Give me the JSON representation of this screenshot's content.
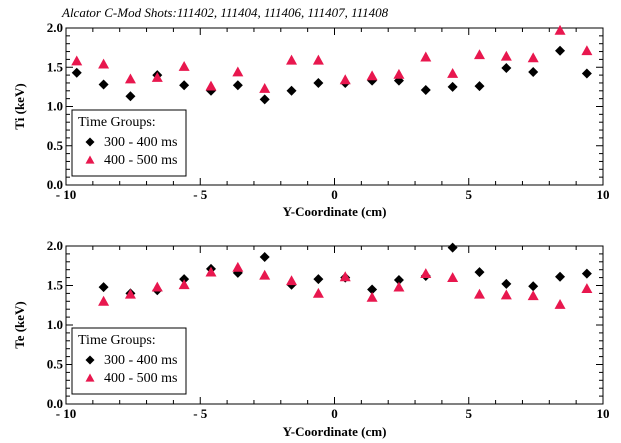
{
  "title": "Alcator C-Mod Shots:111402, 111404, 111406, 111407, 111408",
  "colors": {
    "series1": "#000000",
    "series2": "#e8174e"
  },
  "chart_data": [
    {
      "type": "scatter",
      "xlabel": "Y-Coordinate (cm)",
      "ylabel": "Ti (keV)",
      "xlim": [
        -10,
        10
      ],
      "ylim": [
        0.0,
        2.0
      ],
      "xticks": [
        -10,
        -5,
        0,
        5,
        10
      ],
      "xtick_labels": [
        "- 10",
        "- 5",
        "0",
        "5",
        "10"
      ],
      "yticks": [
        0.0,
        0.5,
        1.0,
        1.5,
        2.0
      ],
      "ytick_labels": [
        "0.0",
        "0.5",
        "1.0",
        "1.5",
        "2.0"
      ],
      "legend_title": "Time Groups:",
      "legend_position": "lower-left",
      "series": [
        {
          "name": "300 - 400 ms",
          "marker": "diamond",
          "x": [
            -9.6,
            -8.6,
            -7.6,
            -6.6,
            -5.6,
            -4.6,
            -3.6,
            -2.6,
            -1.6,
            -0.6,
            0.4,
            1.4,
            2.4,
            3.4,
            4.4,
            5.4,
            6.4,
            7.4,
            8.4,
            9.4
          ],
          "values": [
            1.43,
            1.28,
            1.13,
            1.4,
            1.27,
            1.2,
            1.27,
            1.09,
            1.2,
            1.3,
            1.3,
            1.33,
            1.33,
            1.21,
            1.25,
            1.26,
            1.49,
            1.44,
            1.71,
            1.42
          ]
        },
        {
          "name": "400 - 500 ms",
          "marker": "triangle",
          "x": [
            -9.6,
            -8.6,
            -7.6,
            -6.6,
            -5.6,
            -4.6,
            -3.6,
            -2.6,
            -1.6,
            -0.6,
            0.4,
            1.4,
            2.4,
            3.4,
            4.4,
            5.4,
            6.4,
            7.4,
            8.4,
            9.4
          ],
          "values": [
            1.58,
            1.54,
            1.35,
            1.37,
            1.51,
            1.26,
            1.44,
            1.23,
            1.59,
            1.59,
            1.34,
            1.39,
            1.41,
            1.63,
            1.42,
            1.66,
            1.64,
            1.62,
            1.97,
            1.71
          ]
        }
      ]
    },
    {
      "type": "scatter",
      "xlabel": "Y-Coordinate (cm)",
      "ylabel": "Te (keV)",
      "xlim": [
        -10,
        10
      ],
      "ylim": [
        0.0,
        2.0
      ],
      "xticks": [
        -10,
        -5,
        0,
        5,
        10
      ],
      "xtick_labels": [
        "- 10",
        "- 5",
        "0",
        "5",
        "10"
      ],
      "yticks": [
        0.0,
        0.5,
        1.0,
        1.5,
        2.0
      ],
      "ytick_labels": [
        "0.0",
        "0.5",
        "1.0",
        "1.5",
        "2.0"
      ],
      "legend_title": "Time Groups:",
      "legend_position": "lower-left",
      "series": [
        {
          "name": "300 - 400 ms",
          "marker": "diamond",
          "x": [
            -8.6,
            -7.6,
            -6.6,
            -5.6,
            -4.6,
            -3.6,
            -2.6,
            -1.6,
            -0.6,
            0.4,
            1.4,
            2.4,
            3.4,
            4.4,
            5.4,
            6.4,
            7.4,
            8.4,
            9.4
          ],
          "values": [
            1.48,
            1.4,
            1.44,
            1.58,
            1.71,
            1.66,
            1.86,
            1.51,
            1.58,
            1.6,
            1.45,
            1.57,
            1.62,
            1.98,
            1.67,
            1.52,
            1.49,
            1.61,
            1.65
          ]
        },
        {
          "name": "400 - 500 ms",
          "marker": "triangle",
          "x": [
            -8.6,
            -7.6,
            -6.6,
            -5.6,
            -4.6,
            -3.6,
            -2.6,
            -1.6,
            -0.6,
            0.4,
            1.4,
            2.4,
            3.4,
            4.4,
            5.4,
            6.4,
            7.4,
            8.4,
            9.4
          ],
          "values": [
            1.3,
            1.39,
            1.48,
            1.51,
            1.67,
            1.73,
            1.63,
            1.56,
            1.4,
            1.61,
            1.35,
            1.48,
            1.65,
            1.6,
            1.39,
            1.38,
            1.37,
            1.26,
            1.46
          ]
        }
      ]
    }
  ]
}
